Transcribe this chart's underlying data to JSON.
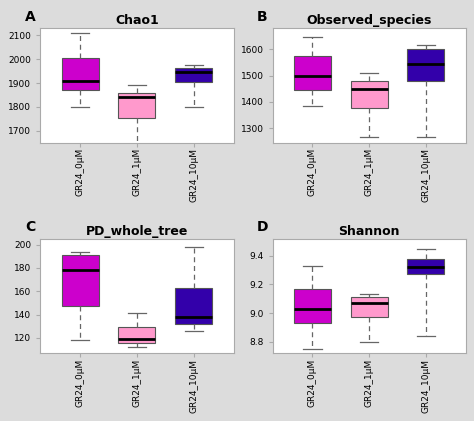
{
  "panels": [
    {
      "label": "A",
      "title": "Chao1",
      "groups": [
        "GR24_0μM",
        "GR24_1μM",
        "GR24_10μM"
      ],
      "colors": [
        "#CC00CC",
        "#FF99CC",
        "#3300AA"
      ],
      "boxes": [
        {
          "q1": 1870,
          "median": 1910,
          "q3": 2005,
          "whislo": 1800,
          "whishi": 2110
        },
        {
          "q1": 1755,
          "median": 1840,
          "q3": 1860,
          "whislo": 1645,
          "whishi": 1890
        },
        {
          "q1": 1905,
          "median": 1945,
          "q3": 1965,
          "whislo": 1800,
          "whishi": 1975
        }
      ],
      "ylim": [
        1650,
        2130
      ],
      "yticks": [
        1700,
        1800,
        1900,
        2000,
        2100
      ]
    },
    {
      "label": "B",
      "title": "Observed_species",
      "groups": [
        "GR24_0μM",
        "GR24_1μM",
        "GR24_10μM"
      ],
      "colors": [
        "#CC00CC",
        "#FF99CC",
        "#3300AA"
      ],
      "boxes": [
        {
          "q1": 1445,
          "median": 1500,
          "q3": 1575,
          "whislo": 1385,
          "whishi": 1645
        },
        {
          "q1": 1375,
          "median": 1450,
          "q3": 1478,
          "whislo": 1268,
          "whishi": 1510
        },
        {
          "q1": 1478,
          "median": 1545,
          "q3": 1600,
          "whislo": 1265,
          "whishi": 1615
        }
      ],
      "ylim": [
        1245,
        1680
      ],
      "yticks": [
        1300,
        1400,
        1500,
        1600
      ]
    },
    {
      "label": "C",
      "title": "PD_whole_tree",
      "groups": [
        "GR24_0μM",
        "GR24_1μM",
        "GR24_10μM"
      ],
      "colors": [
        "#CC00CC",
        "#FF99CC",
        "#3300AA"
      ],
      "boxes": [
        {
          "q1": 147,
          "median": 178,
          "q3": 191,
          "whislo": 118,
          "whishi": 194
        },
        {
          "q1": 116,
          "median": 119,
          "q3": 129,
          "whislo": 112,
          "whishi": 141
        },
        {
          "q1": 132,
          "median": 138,
          "q3": 163,
          "whislo": 126,
          "whishi": 198
        }
      ],
      "ylim": [
        107,
        205
      ],
      "yticks": [
        120,
        140,
        160,
        180,
        200
      ]
    },
    {
      "label": "D",
      "title": "Shannon",
      "groups": [
        "GR24_0μM",
        "GR24_1μM",
        "GR24_10μM"
      ],
      "colors": [
        "#CC00CC",
        "#FF99CC",
        "#3300AA"
      ],
      "boxes": [
        {
          "q1": 8.93,
          "median": 9.03,
          "q3": 9.17,
          "whislo": 8.75,
          "whishi": 9.33
        },
        {
          "q1": 8.97,
          "median": 9.07,
          "q3": 9.11,
          "whislo": 8.8,
          "whishi": 9.13
        },
        {
          "q1": 9.27,
          "median": 9.32,
          "q3": 9.38,
          "whislo": 8.84,
          "whishi": 9.45
        }
      ],
      "ylim": [
        8.72,
        9.52
      ],
      "yticks": [
        8.8,
        9.0,
        9.2,
        9.4
      ]
    }
  ],
  "background_color": "#DCDCDC",
  "plot_bg_color": "#FFFFFF",
  "tick_label_fontsize": 6.5,
  "title_fontsize": 9,
  "label_fontsize": 10
}
